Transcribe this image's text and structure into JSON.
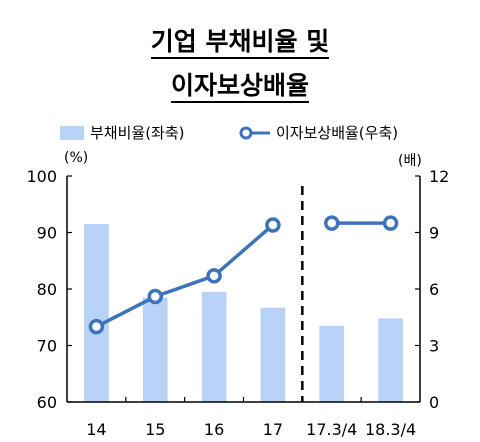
{
  "title_line1": "기업 부채비율 및",
  "title_line2": "이자보상배율",
  "legend": {
    "bar_label": "부채비율(좌축)",
    "line_label": "이자보상배율(우축)"
  },
  "left_unit": "(%)",
  "right_unit": "(배)",
  "colors": {
    "bar": "#b8d3f5",
    "line": "#3d73b8",
    "axis": "#000000"
  },
  "chart_data": {
    "type": "bar",
    "categories": [
      "14",
      "15",
      "16",
      "17",
      "17.3/4",
      "18.3/4"
    ],
    "series": [
      {
        "name": "부채비율(좌축)",
        "type": "bar",
        "axis": "left",
        "values": [
          91.5,
          78.5,
          79.5,
          76.7,
          73.5,
          74.8
        ]
      },
      {
        "name": "이자보상배율(우축)",
        "type": "line",
        "axis": "right",
        "values": [
          4.0,
          5.6,
          6.7,
          9.4,
          9.5,
          9.5
        ]
      }
    ],
    "line_breaks_before_category": 4,
    "divider_before_category": 4,
    "ylim_left": [
      60,
      100
    ],
    "yticks_left": [
      60,
      70,
      80,
      90,
      100
    ],
    "ylim_right": [
      0,
      12
    ],
    "yticks_right": [
      0,
      3,
      6,
      9,
      12
    ],
    "grid": false,
    "legend_position": "top"
  }
}
